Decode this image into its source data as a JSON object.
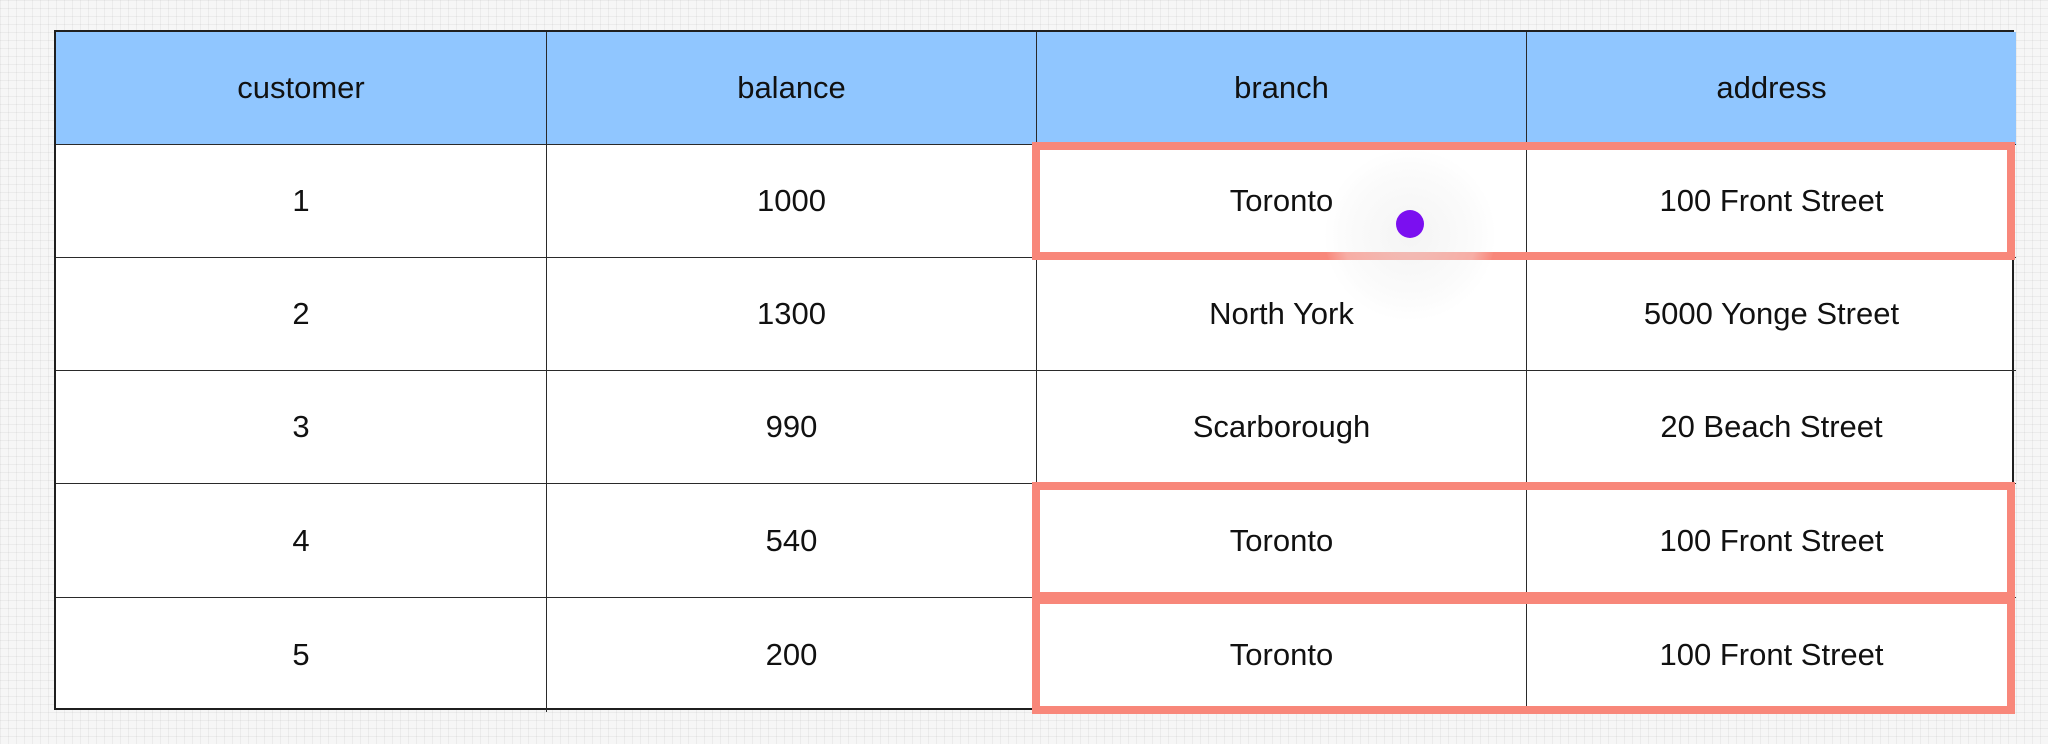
{
  "table": {
    "headers": [
      "customer",
      "balance",
      "branch",
      "address"
    ],
    "rows": [
      [
        "1",
        "1000",
        "Toronto",
        "100 Front Street"
      ],
      [
        "2",
        "1300",
        "North York",
        "5000 Yonge Street"
      ],
      [
        "3",
        "990",
        "Scarborough",
        "20 Beach Street"
      ],
      [
        "4",
        "540",
        "Toronto",
        "100 Front Street"
      ],
      [
        "5",
        "200",
        "Toronto",
        "100 Front Street"
      ]
    ]
  },
  "highlighted_rows": [
    1,
    4,
    5
  ],
  "colors": {
    "header_fill": "#90c6ff",
    "highlight_border": "#f8877a",
    "cursor": "#7b0ff0"
  }
}
